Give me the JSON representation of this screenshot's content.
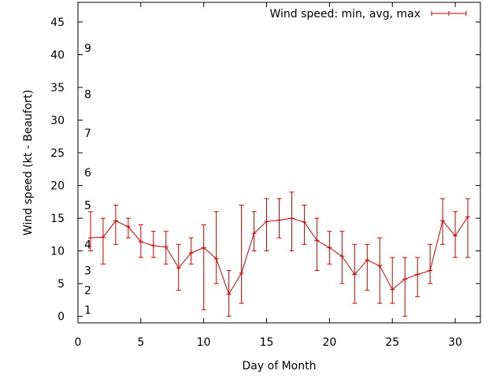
{
  "chart_data": {
    "type": "line",
    "title": "",
    "xlabel": "Day of Month",
    "ylabel": "Wind speed (kt - Beaufort)",
    "xlim": [
      0,
      32
    ],
    "ylim": [
      -1,
      48
    ],
    "x_ticks": [
      0,
      5,
      10,
      15,
      20,
      25,
      30
    ],
    "y_ticks": [
      0,
      5,
      10,
      15,
      20,
      25,
      30,
      35,
      40,
      45
    ],
    "grid": false,
    "legend_position": "top-right",
    "series": [
      {
        "name": "Wind speed: min, avg, max",
        "color": "#cc0000",
        "x": [
          1,
          2,
          3,
          4,
          5,
          6,
          7,
          8,
          9,
          10,
          11,
          12,
          13,
          14,
          15,
          16,
          17,
          18,
          19,
          20,
          21,
          22,
          23,
          24,
          25,
          26,
          27,
          28,
          29,
          30,
          31
        ],
        "avg": [
          12,
          12.1,
          14.6,
          13.7,
          11.4,
          10.8,
          10.6,
          7.4,
          9.7,
          10.5,
          8.8,
          3.4,
          6.6,
          12.7,
          14.5,
          14.7,
          15,
          14.4,
          11.6,
          10.5,
          9.2,
          6.4,
          8.6,
          7.7,
          4.1,
          5.7,
          6.4,
          7,
          14.6,
          12.3,
          15.2
        ],
        "min": [
          10,
          8,
          11,
          12,
          9,
          9,
          8,
          4,
          8,
          1,
          5,
          0,
          2,
          10,
          10,
          12,
          10,
          11,
          7,
          8,
          5,
          2,
          4,
          2,
          2,
          0,
          3,
          5,
          11,
          9,
          9
        ],
        "max": [
          16,
          15,
          17,
          15,
          14,
          13,
          13,
          11,
          12,
          14,
          16,
          7,
          17,
          16,
          18,
          18,
          19,
          17,
          15,
          13,
          13,
          11,
          11,
          12,
          9,
          9,
          9,
          11,
          18,
          16,
          18
        ]
      }
    ],
    "annotations": [
      {
        "text": "1",
        "y": 1
      },
      {
        "text": "2",
        "y": 4
      },
      {
        "text": "3",
        "y": 7
      },
      {
        "text": "4",
        "y": 11
      },
      {
        "text": "5",
        "y": 17
      },
      {
        "text": "6",
        "y": 22
      },
      {
        "text": "7",
        "y": 28
      },
      {
        "text": "8",
        "y": 34
      },
      {
        "text": "9",
        "y": 41
      }
    ]
  }
}
